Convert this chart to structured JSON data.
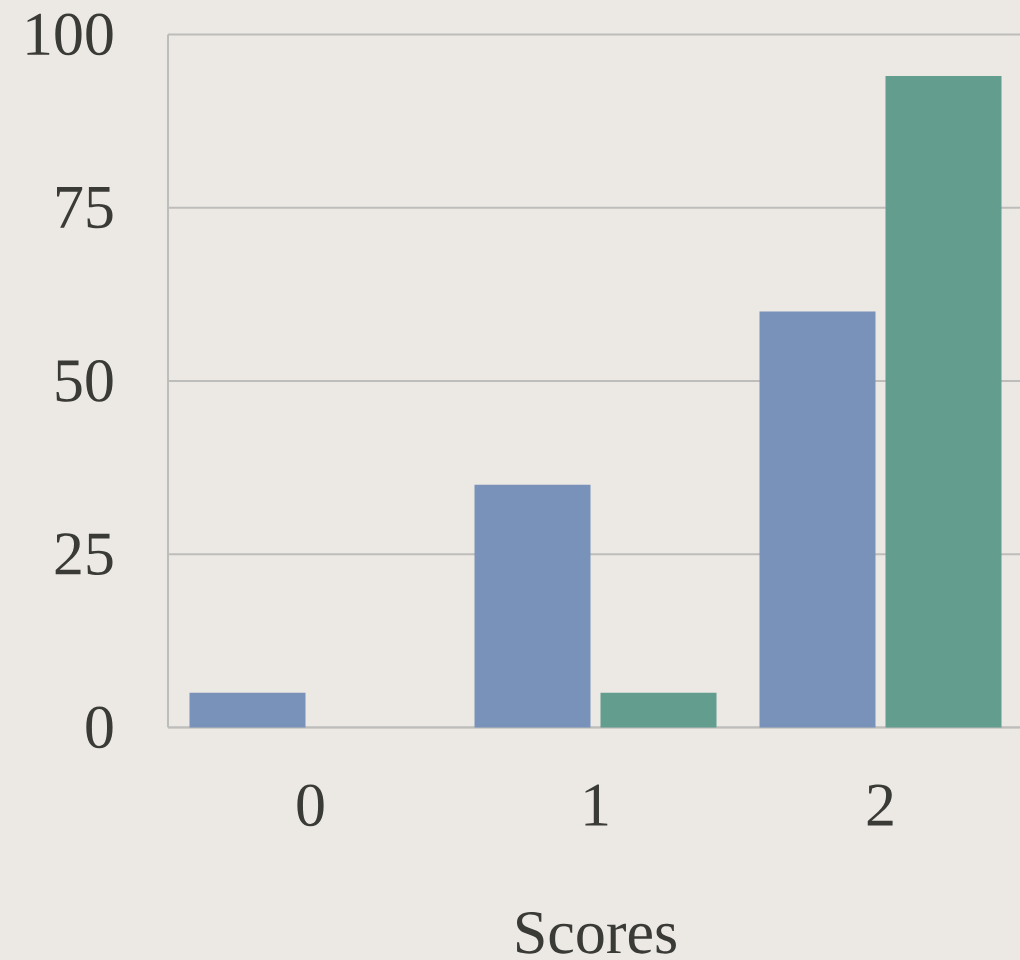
{
  "chart_data": {
    "type": "bar",
    "xlabel": "Scores",
    "categories": [
      "0",
      "1",
      "2"
    ],
    "series": [
      {
        "color": "#7892b9",
        "values": [
          5,
          35,
          60
        ]
      },
      {
        "color": "#629d8e",
        "values": [
          0,
          5,
          94
        ]
      }
    ],
    "ylim": [
      0,
      100
    ],
    "yticks": [
      0,
      25,
      50,
      75,
      100
    ],
    "grid": "y"
  }
}
